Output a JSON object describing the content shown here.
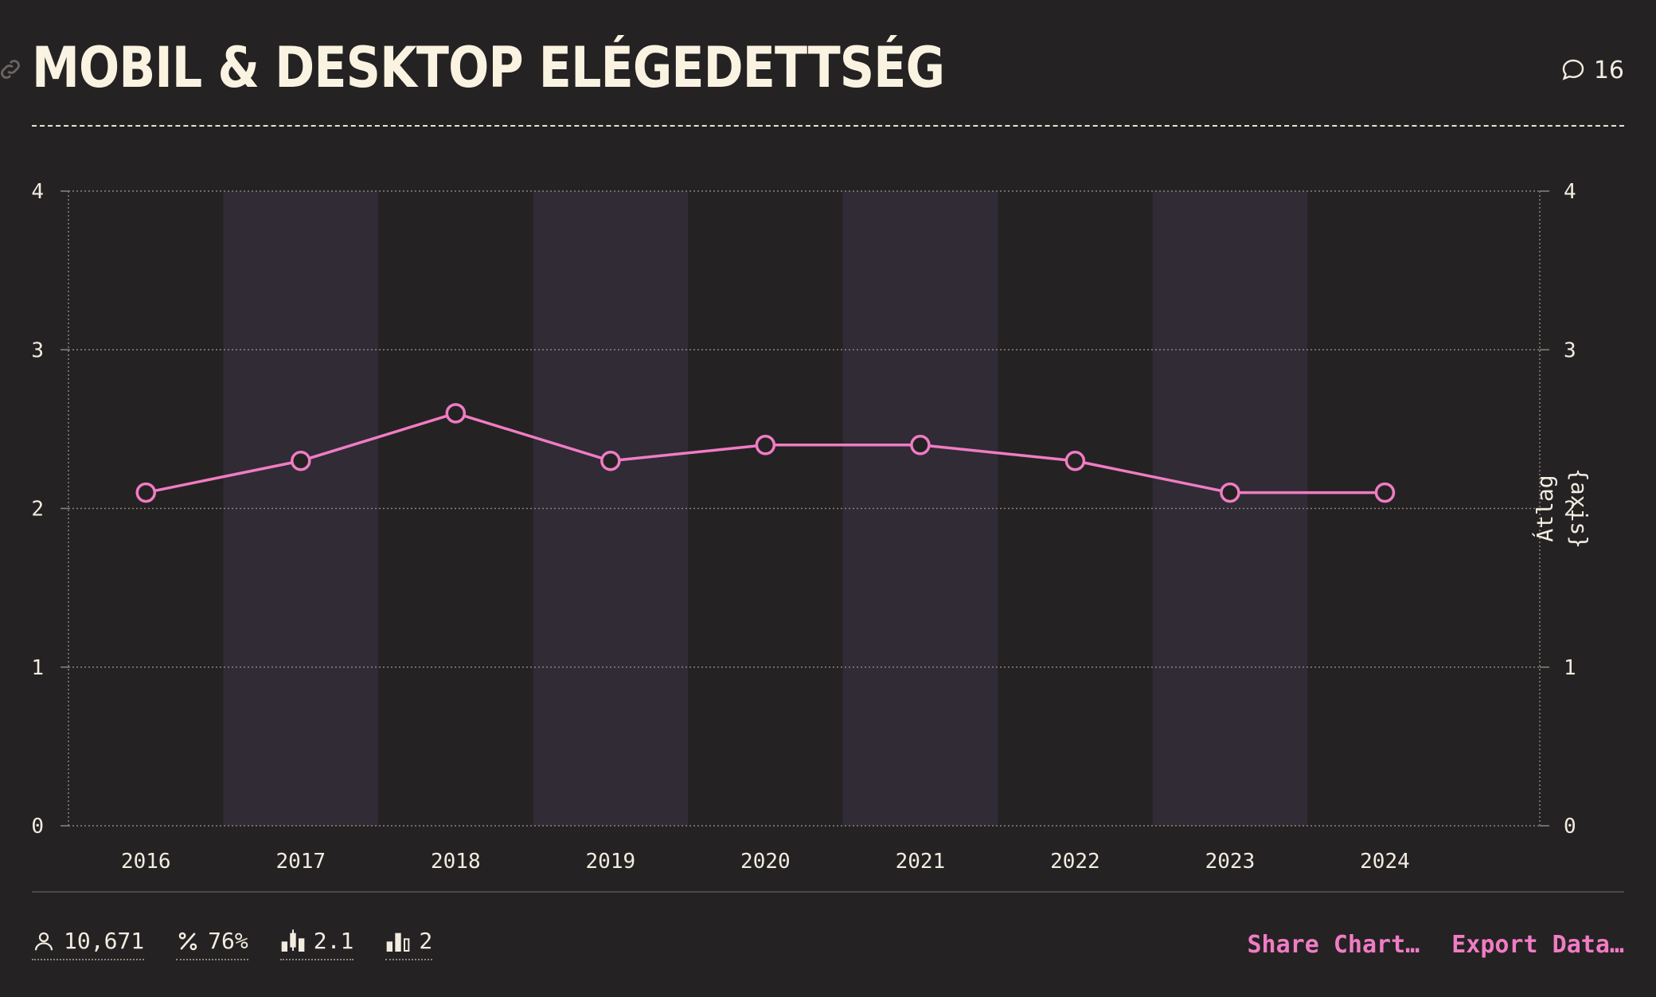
{
  "header": {
    "title": "MOBIL & DESKTOP ELÉGEDETTSÉG",
    "comment_count": "16"
  },
  "chart_data": {
    "type": "line",
    "title": "MOBIL & DESKTOP ELÉGEDETTSÉG",
    "categories": [
      "2016",
      "2017",
      "2018",
      "2019",
      "2020",
      "2021",
      "2022",
      "2023",
      "2024"
    ],
    "series": [
      {
        "values": [
          2.1,
          2.3,
          2.6,
          2.3,
          2.4,
          2.4,
          2.3,
          2.1,
          2.1
        ]
      }
    ],
    "ylim": [
      0,
      4
    ],
    "yticks": [
      "0",
      "1",
      "2",
      "3",
      "4"
    ],
    "ylabel_right": "Átlag",
    "ylabel_placeholder": "{axis}",
    "grid": true,
    "alternating_bands": true,
    "colors": {
      "line": "#f07cc4",
      "band": "#302b35",
      "background": "#252223"
    }
  },
  "footer": {
    "stats": [
      {
        "icon": "user-icon",
        "value": "10,671"
      },
      {
        "icon": "percent-icon",
        "value": "76%"
      },
      {
        "icon": "candlestick-chart-icon",
        "value": "2.1"
      },
      {
        "icon": "bar-chart-icon",
        "value": "2"
      }
    ],
    "actions": {
      "share": "Share Chart…",
      "export": "Export Data…"
    }
  }
}
